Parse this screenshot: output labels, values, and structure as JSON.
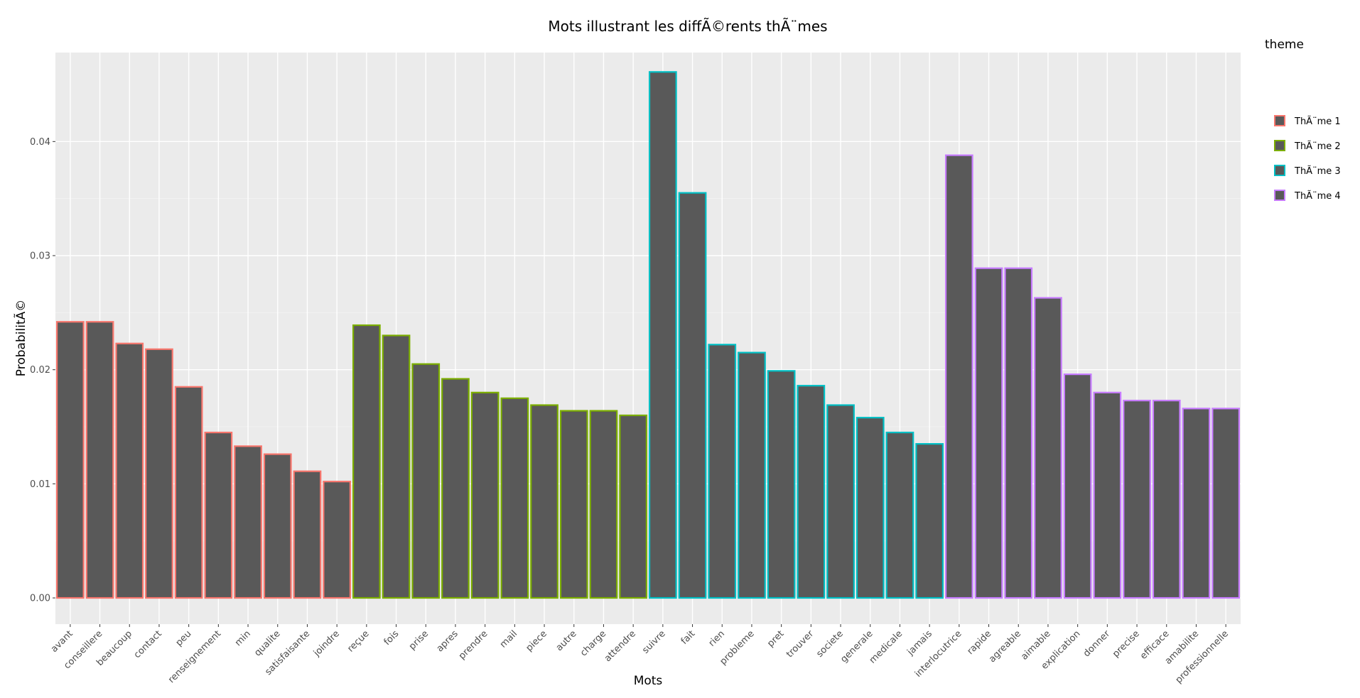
{
  "chart_data": {
    "type": "bar",
    "title": "Mots illustrant les diffÃ©rents thÃ¨mes",
    "xlabel": "Mots",
    "ylabel": "ProbabilitÃ©",
    "ylim": [
      -0.0023,
      0.0478
    ],
    "yticks": [
      0.0,
      0.01,
      0.02,
      0.03,
      0.04
    ],
    "ytick_labels": [
      "0.00",
      "0.01",
      "0.02",
      "0.03",
      "0.04"
    ],
    "grid": true,
    "legend": {
      "title": "theme",
      "placement": "right"
    },
    "bar_fill": "#595959",
    "panel_bg": "#ebebeb",
    "series": [
      {
        "name": "ThÃ¨me 1",
        "color": "#f8766d",
        "categories": [
          "avant",
          "conseillere",
          "beaucoup",
          "contact",
          "peu",
          "renseignement",
          "min",
          "qualite",
          "satisfaisante",
          "joindre"
        ],
        "values": [
          0.0242,
          0.0242,
          0.0223,
          0.0218,
          0.0185,
          0.0145,
          0.0133,
          0.0126,
          0.0111,
          0.0102
        ]
      },
      {
        "name": "ThÃ¨me 2",
        "color": "#7cae00",
        "categories": [
          "reçue",
          "fois",
          "prise",
          "apres",
          "prendre",
          "mail",
          "piece",
          "autre",
          "charge",
          "attendre"
        ],
        "values": [
          0.0239,
          0.023,
          0.0205,
          0.0192,
          0.018,
          0.0175,
          0.0169,
          0.0164,
          0.0164,
          0.016
        ]
      },
      {
        "name": "ThÃ¨me 3",
        "color": "#00bfc4",
        "categories": [
          "suivre",
          "fait",
          "rien",
          "probleme",
          "pret",
          "trouver",
          "societe",
          "generale",
          "medicale",
          "jamais"
        ],
        "values": [
          0.0461,
          0.0355,
          0.0222,
          0.0215,
          0.0199,
          0.0186,
          0.0169,
          0.0158,
          0.0145,
          0.0135
        ]
      },
      {
        "name": "ThÃ¨me 4",
        "color": "#c77cff",
        "categories": [
          "interlocutrice",
          "rapide",
          "agreable",
          "aimable",
          "explication",
          "donner",
          "precise",
          "efficace",
          "amabilite",
          "professionnelle"
        ],
        "values": [
          0.0388,
          0.0289,
          0.0289,
          0.0263,
          0.0196,
          0.018,
          0.0173,
          0.0173,
          0.0166,
          0.0166
        ]
      }
    ]
  }
}
